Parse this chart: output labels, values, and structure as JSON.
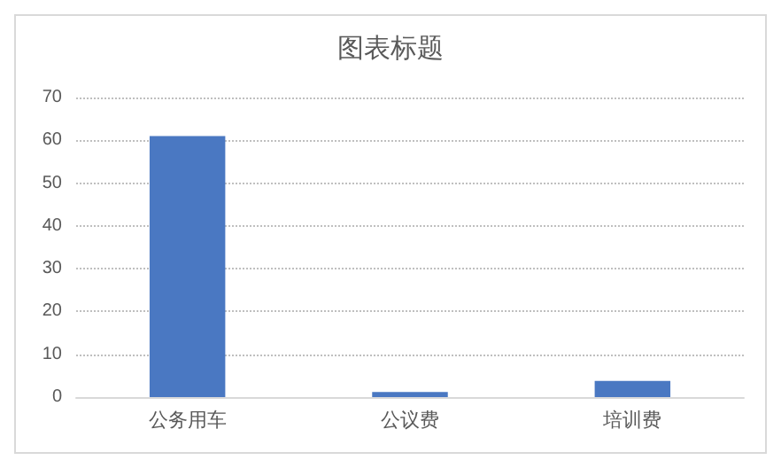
{
  "chart_data": {
    "type": "bar",
    "title": "图表标题",
    "categories": [
      "公务用车",
      "公议费",
      "培训费"
    ],
    "values": [
      61,
      1.2,
      3.8
    ],
    "color": "#4a78c2",
    "ylim": [
      0,
      70
    ],
    "yticks": [
      0,
      10,
      20,
      30,
      40,
      50,
      60,
      70
    ],
    "grid": true
  }
}
